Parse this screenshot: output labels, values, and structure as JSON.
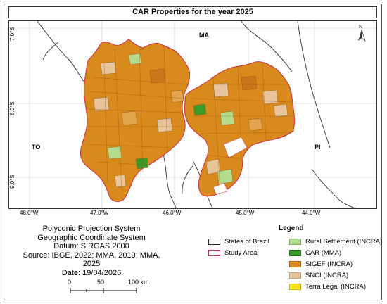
{
  "map": {
    "title": "CAR Properties for the year 2025",
    "latitudes": [
      "7.0°S",
      "8.0°S",
      "9.0°S"
    ],
    "longitudes": [
      "48.0°W",
      "47.0°W",
      "46.0°W",
      "45.0°W",
      "44.0°W"
    ],
    "states": {
      "ma": "MA",
      "to": "TO",
      "pi": "PI"
    },
    "north_arrow": "N"
  },
  "info": {
    "line1": "Polyconic Projection System",
    "line2": "Geographic Coordinate System",
    "line3": "Datum: SIRGAS 2000",
    "line4": "Source: IBGE, 2022; MMA, 2019; MMA, 2025",
    "line5": "Date: 19/04/2026"
  },
  "scale": {
    "labels": [
      "0",
      "50",
      "100 km"
    ]
  },
  "legend": {
    "title": "Legend",
    "items": [
      {
        "label": "States of Brazil",
        "fill": "#ffffff",
        "border": "#222222"
      },
      {
        "label": "Rural Settlement (INCRA)",
        "fill": "#b5dc8c",
        "border": "#7fae58"
      },
      {
        "label": "Study Area",
        "fill": "#ffffff",
        "border": "#cc3344"
      },
      {
        "label": "CAR (MMA)",
        "fill": "#3a9a2a",
        "border": "#2a7a1e"
      },
      {
        "label": "SIGEF (INCRA)",
        "fill": "#d98a1c",
        "border": "#a8660e"
      },
      {
        "label": "SNCI (INCRA)",
        "fill": "#e8c49a",
        "border": "#c9a274"
      },
      {
        "label": "Terra Legal (INCRA)",
        "fill": "#f4e21c",
        "border": "#c9b80e"
      }
    ]
  }
}
